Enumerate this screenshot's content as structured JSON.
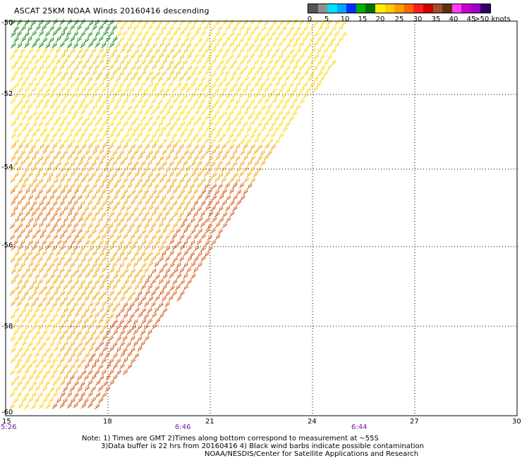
{
  "title": "ASCAT 25KM NOAA Winds 20160416 descending",
  "legend": {
    "colors": [
      "#555555",
      "#909090",
      "#00e0ff",
      "#00a8ff",
      "#0030ff",
      "#00b000",
      "#007000",
      "#ffee00",
      "#ffcc00",
      "#ff9a00",
      "#ff6600",
      "#ff2020",
      "#cc0000",
      "#a05030",
      "#603010",
      "#ff40ff",
      "#cc00cc",
      "#9900cc",
      "#330066"
    ],
    "labels": [
      "0",
      "5",
      "10",
      "15",
      "20",
      "25",
      "30",
      "35",
      "40",
      "45",
      ">50 knots"
    ]
  },
  "lat_labels": [
    "-50",
    "-52",
    "-54",
    "-56",
    "-58",
    "-60"
  ],
  "lon_labels": [
    "15",
    "18",
    "21",
    "24",
    "27",
    "30"
  ],
  "time_labels": [
    "5:26",
    "6:46",
    "6:44"
  ],
  "footer": {
    "line1": "Note: 1) Times are GMT 2)Times along bottom correspond to measurement at ~55S",
    "line2": "3)Data buffer is 22 hrs from 20160416 4) Black wind barbs indicate possible contamination",
    "line3": "NOAA/NESDIS/Center for Satellite Applications and Research"
  }
}
